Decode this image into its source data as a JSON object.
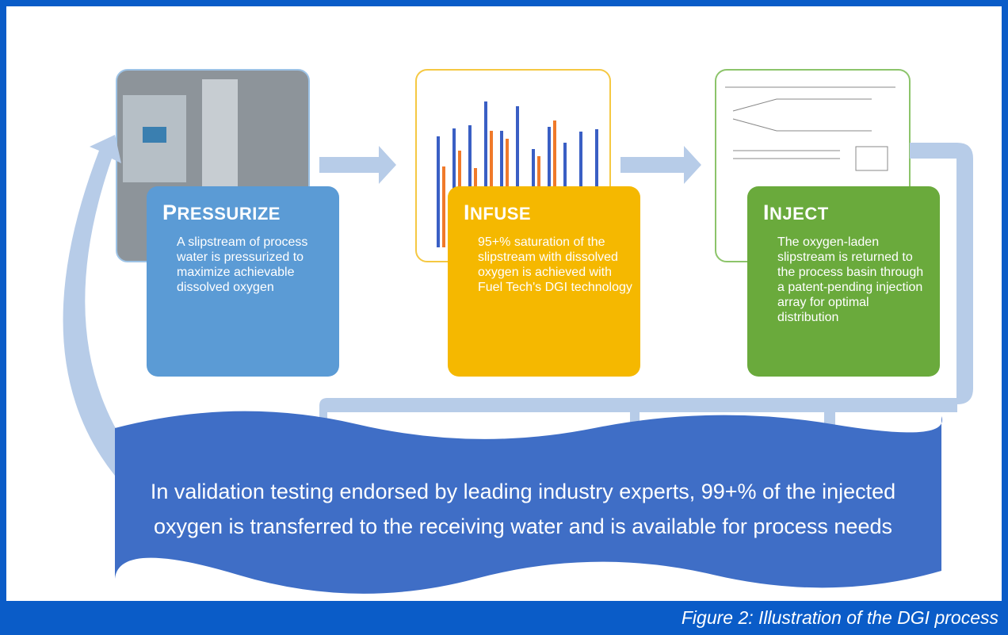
{
  "steps": [
    {
      "title": "PRESSURIZE",
      "body": "A slipstream of process water is pressurized to maximize achievable dissolved oxygen"
    },
    {
      "title": "INFUSE",
      "body": "95+% saturation of the slipstream with dissolved oxygen is achieved with Fuel Tech's DGI technology"
    },
    {
      "title": "INJECT",
      "body": "The oxygen-laden slipstream is returned to the process basin through a patent-pending injection array for optimal distribution"
    }
  ],
  "banner": "In validation testing endorsed by leading industry experts, 99+% of the injected oxygen is transferred to the receiving water and is available for process needs",
  "caption": "Figure 2: Illustration of the DGI process"
}
